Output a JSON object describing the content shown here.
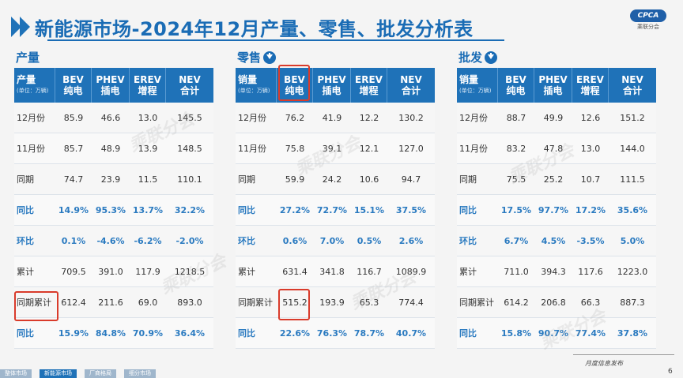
{
  "title": "新能源市场-2024年12月产量、零售、批发分析表",
  "logo": {
    "mark": "CPCA",
    "sub": "乘联分会"
  },
  "footer": {
    "text": "月度信息发布",
    "page": "6"
  },
  "bottom_tabs": [
    "整体市场",
    "新能源市场",
    "厂商格局",
    "细分市场"
  ],
  "sections": [
    {
      "heading": "产量",
      "has_icon": false,
      "header": {
        "first": "产量",
        "unit": "(单位：万辆)",
        "cols": [
          [
            "BEV",
            "纯电"
          ],
          [
            "PHEV",
            "插电"
          ],
          [
            "EREV",
            "增程"
          ],
          [
            "NEV",
            "合计"
          ]
        ]
      },
      "rows": [
        {
          "label": "12月份",
          "values": [
            "85.9",
            "46.6",
            "13.0",
            "145.5"
          ],
          "pct": false
        },
        {
          "label": "11月份",
          "values": [
            "85.7",
            "48.9",
            "13.9",
            "148.5"
          ],
          "pct": false
        },
        {
          "label": "同期",
          "values": [
            "74.7",
            "23.9",
            "11.5",
            "110.1"
          ],
          "pct": false
        },
        {
          "label": "同比",
          "values": [
            "14.9%",
            "95.3%",
            "13.7%",
            "32.2%"
          ],
          "pct": true
        },
        {
          "label": "环比",
          "values": [
            "0.1%",
            "-4.6%",
            "-6.2%",
            "-2.0%"
          ],
          "pct": true
        },
        {
          "label": "累计",
          "values": [
            "709.5",
            "391.0",
            "117.9",
            "1218.5"
          ],
          "pct": false
        },
        {
          "label": "同期累计",
          "values": [
            "612.4",
            "211.6",
            "69.0",
            "893.0"
          ],
          "pct": false
        },
        {
          "label": "同比",
          "values": [
            "15.9%",
            "84.8%",
            "70.9%",
            "36.4%"
          ],
          "pct": true
        }
      ]
    },
    {
      "heading": "零售",
      "has_icon": true,
      "header": {
        "first": "销量",
        "unit": "(单位：万辆)",
        "cols": [
          [
            "BEV",
            "纯电"
          ],
          [
            "PHEV",
            "插电"
          ],
          [
            "EREV",
            "增程"
          ],
          [
            "NEV",
            "合计"
          ]
        ]
      },
      "rows": [
        {
          "label": "12月份",
          "values": [
            "76.2",
            "41.9",
            "12.2",
            "130.2"
          ],
          "pct": false
        },
        {
          "label": "11月份",
          "values": [
            "75.8",
            "39.1",
            "12.1",
            "127.0"
          ],
          "pct": false
        },
        {
          "label": "同期",
          "values": [
            "59.9",
            "24.2",
            "10.6",
            "94.7"
          ],
          "pct": false
        },
        {
          "label": "同比",
          "values": [
            "27.2%",
            "72.7%",
            "15.1%",
            "37.5%"
          ],
          "pct": true
        },
        {
          "label": "环比",
          "values": [
            "0.6%",
            "7.0%",
            "0.5%",
            "2.6%"
          ],
          "pct": true
        },
        {
          "label": "累计",
          "values": [
            "631.4",
            "341.8",
            "116.7",
            "1089.9"
          ],
          "pct": false
        },
        {
          "label": "同期累计",
          "values": [
            "515.2",
            "193.9",
            "65.3",
            "774.4"
          ],
          "pct": false
        },
        {
          "label": "同比",
          "values": [
            "22.6%",
            "76.3%",
            "78.7%",
            "40.7%"
          ],
          "pct": true
        }
      ]
    },
    {
      "heading": "批发",
      "has_icon": true,
      "header": {
        "first": "销量",
        "unit": "(单位：万辆)",
        "cols": [
          [
            "BEV",
            "纯电"
          ],
          [
            "PHEV",
            "插电"
          ],
          [
            "EREV",
            "增程"
          ],
          [
            "NEV",
            "合计"
          ]
        ]
      },
      "rows": [
        {
          "label": "12月份",
          "values": [
            "88.7",
            "49.9",
            "12.6",
            "151.2"
          ],
          "pct": false
        },
        {
          "label": "11月份",
          "values": [
            "83.2",
            "47.8",
            "13.0",
            "144.0"
          ],
          "pct": false
        },
        {
          "label": "同期",
          "values": [
            "75.5",
            "25.2",
            "10.7",
            "111.5"
          ],
          "pct": false
        },
        {
          "label": "同比",
          "values": [
            "17.5%",
            "97.7%",
            "17.2%",
            "35.6%"
          ],
          "pct": true
        },
        {
          "label": "环比",
          "values": [
            "6.7%",
            "4.5%",
            "-3.5%",
            "5.0%"
          ],
          "pct": true
        },
        {
          "label": "累计",
          "values": [
            "711.0",
            "394.3",
            "117.6",
            "1223.0"
          ],
          "pct": false
        },
        {
          "label": "同期累计",
          "values": [
            "614.2",
            "206.8",
            "66.3",
            "887.3"
          ],
          "pct": false
        },
        {
          "label": "同比",
          "values": [
            "15.8%",
            "90.7%",
            "77.4%",
            "37.8%"
          ],
          "pct": true
        }
      ]
    }
  ]
}
